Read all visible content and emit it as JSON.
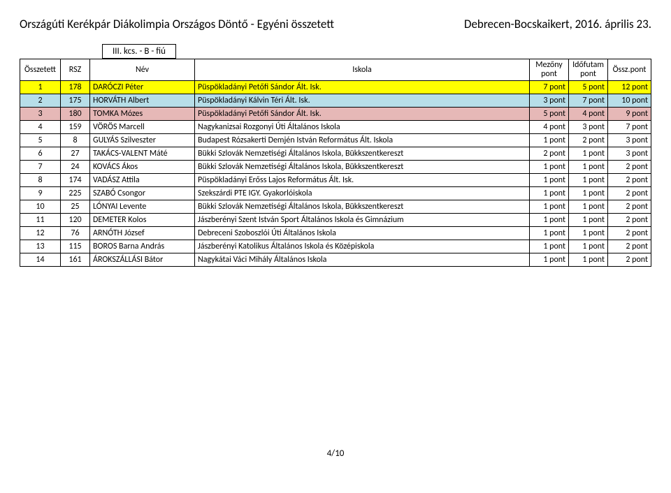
{
  "header": {
    "left": "Országúti Kerékpár Diákolimpia Országos Döntő - Egyéni összetett",
    "right": "Debrecen-Bocskaikert, 2016. április 23."
  },
  "category": "III. kcs. - B - fiú",
  "columns": {
    "osszetett": "Összetett",
    "rsz": "RSZ",
    "nev": "Név",
    "iskola": "Iskola",
    "mezony_l1": "Mezőny",
    "mezony_l2": "pont",
    "idofutam_l1": "Időfutam",
    "idofutam_l2": "pont",
    "osszpont": "Össz.pont"
  },
  "rows": [
    {
      "rank": "1",
      "rsz": "178",
      "nev": "DARÓCZI Péter",
      "isk": "Püspökladányi Petőfi Sándor Ált. Isk.",
      "mez": "7 pont",
      "ido": "5 pont",
      "ossz": "12 pont",
      "cls": "r1"
    },
    {
      "rank": "2",
      "rsz": "175",
      "nev": "HORVÁTH Albert",
      "isk": "Püspökladányi Kálvin Téri Ált. Isk.",
      "mez": "3 pont",
      "ido": "7 pont",
      "ossz": "10 pont",
      "cls": "r2"
    },
    {
      "rank": "3",
      "rsz": "180",
      "nev": "TOMKA Mózes",
      "isk": "Püspökladányi Petőfi Sándor Ált. Isk.",
      "mez": "5 pont",
      "ido": "4 pont",
      "ossz": "9 pont",
      "cls": "r3"
    },
    {
      "rank": "4",
      "rsz": "159",
      "nev": "VÖRÖS Marcell",
      "isk": "Nagykanizsai Rozgonyi Úti Általános Iskola",
      "mez": "4 pont",
      "ido": "3 pont",
      "ossz": "7 pont",
      "cls": ""
    },
    {
      "rank": "5",
      "rsz": "8",
      "nev": "GULYÁS Szilveszter",
      "isk": "Budapest Rózsakerti Demjén István Református Ált. Iskola",
      "mez": "1 pont",
      "ido": "2 pont",
      "ossz": "3 pont",
      "cls": ""
    },
    {
      "rank": "6",
      "rsz": "27",
      "nev": "TAKÁCS-VALENT Máté",
      "isk": "Bükki Szlovák Nemzetiségi Általános Iskola, Bükkszentkereszt",
      "mez": "2 pont",
      "ido": "1 pont",
      "ossz": "3 pont",
      "cls": ""
    },
    {
      "rank": "7",
      "rsz": "24",
      "nev": "KOVÁCS Ákos",
      "isk": "Bükki Szlovák Nemzetiségi Általános Iskola, Bükkszentkereszt",
      "mez": "1 pont",
      "ido": "1 pont",
      "ossz": "2 pont",
      "cls": ""
    },
    {
      "rank": "8",
      "rsz": "174",
      "nev": "VADÁSZ Attila",
      "isk": "Püspökladányi Erőss Lajos Református Ált. Isk.",
      "mez": "1 pont",
      "ido": "1 pont",
      "ossz": "2 pont",
      "cls": ""
    },
    {
      "rank": "9",
      "rsz": "225",
      "nev": "SZABÓ Csongor",
      "isk": "Szekszárdi PTE IGY. Gyakorlóiskola",
      "mez": "1 pont",
      "ido": "1 pont",
      "ossz": "2 pont",
      "cls": ""
    },
    {
      "rank": "10",
      "rsz": "25",
      "nev": "LÓNYAI Levente",
      "isk": "Bükki Szlovák Nemzetiségi Általános Iskola, Bükkszentkereszt",
      "mez": "1 pont",
      "ido": "1 pont",
      "ossz": "2 pont",
      "cls": ""
    },
    {
      "rank": "11",
      "rsz": "120",
      "nev": "DEMETER Kolos",
      "isk": "Jászberényi Szent István Sport Általános Iskola és Gimnázium",
      "mez": "1 pont",
      "ido": "1 pont",
      "ossz": "2 pont",
      "cls": ""
    },
    {
      "rank": "12",
      "rsz": "76",
      "nev": "ARNÓTH József",
      "isk": "Debreceni Szoboszlói Úti Általános Iskola",
      "mez": "1 pont",
      "ido": "1 pont",
      "ossz": "2 pont",
      "cls": ""
    },
    {
      "rank": "13",
      "rsz": "115",
      "nev": "BOROS Barna András",
      "isk": "Jászberényi Katolikus Általános Iskola és Középiskola",
      "mez": "1 pont",
      "ido": "1 pont",
      "ossz": "2 pont",
      "cls": ""
    },
    {
      "rank": "14",
      "rsz": "161",
      "nev": "ÁROKSZÁLLÁSI Bátor",
      "isk": "Nagykátai Váci Mihály Általános Iskola",
      "mez": "1 pont",
      "ido": "1 pont",
      "ossz": "2 pont",
      "cls": ""
    }
  ],
  "footer": "4/10"
}
